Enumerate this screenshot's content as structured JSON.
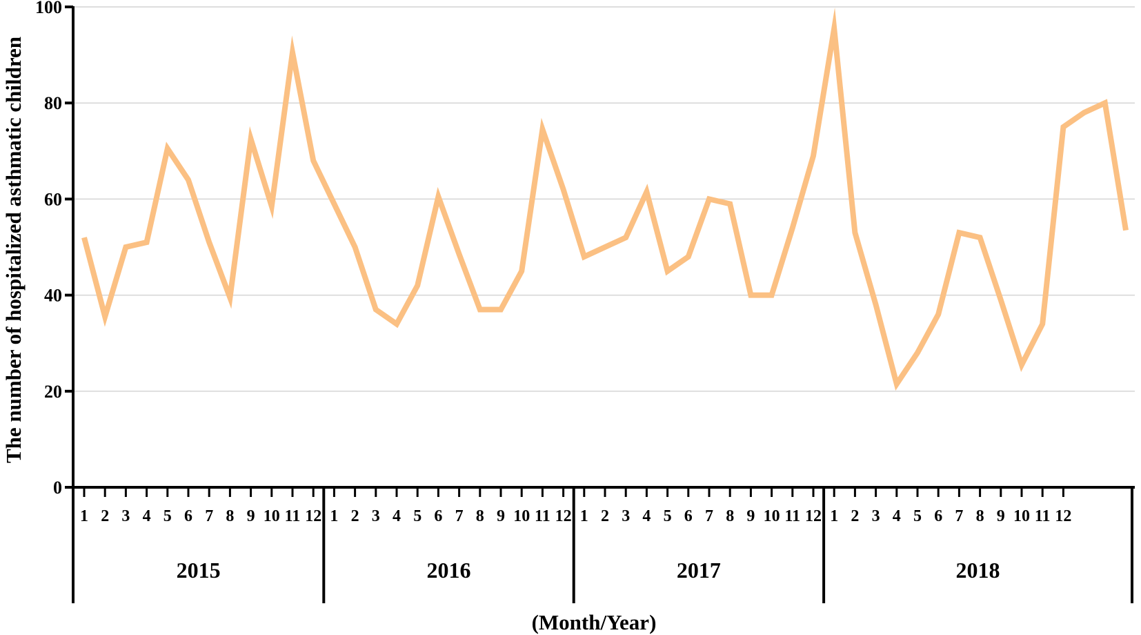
{
  "chart_data": {
    "type": "line",
    "ylabel": "The number of hospitalized asthmatic children",
    "xlabel": "(Month/Year)",
    "ylim": [
      0,
      100
    ],
    "yticks": [
      0,
      20,
      40,
      60,
      80,
      100
    ],
    "grid": true,
    "years": [
      "2015",
      "2016",
      "2017",
      "2018"
    ],
    "months": [
      "1",
      "2",
      "3",
      "4",
      "5",
      "6",
      "7",
      "8",
      "9",
      "10",
      "11",
      "12"
    ],
    "series": [
      {
        "color": "#FBC083",
        "values": [
          52,
          35.5,
          50,
          51,
          70.5,
          64,
          51,
          39.5,
          72.5,
          58.5,
          90.5,
          68,
          59,
          50,
          37,
          34,
          42,
          60.5,
          48.5,
          37,
          37,
          45,
          74.5,
          62,
          48,
          50,
          52,
          61.5,
          45,
          48,
          60,
          59,
          40,
          40,
          54,
          69,
          95.5,
          53,
          38,
          21.5,
          28,
          36,
          53,
          52,
          39,
          25.5,
          34,
          75,
          78,
          80,
          53.5
        ]
      }
    ]
  }
}
